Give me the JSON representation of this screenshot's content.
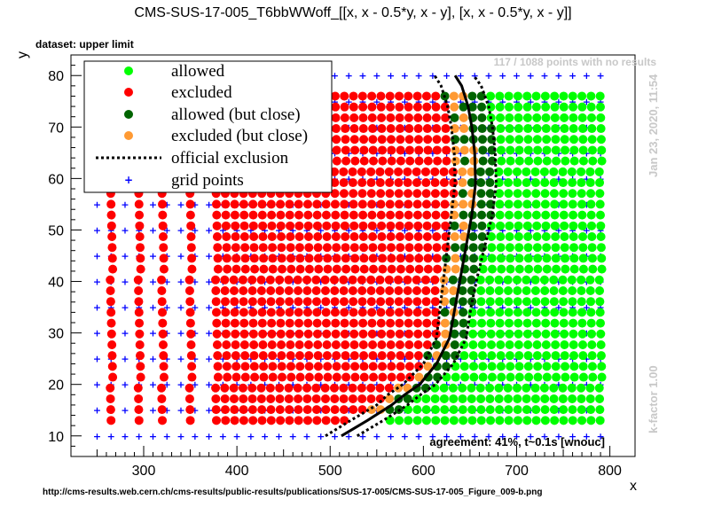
{
  "chart_data": {
    "type": "scatter",
    "title": "CMS-SUS-17-005_T6bbWWoff_[[x, x - 0.5*y, x - y], [x, x - 0.5*y, x - y]]",
    "subtitle": "dataset: upper limit",
    "xlabel": "x",
    "ylabel": "y",
    "xlim": [
      222,
      827
    ],
    "ylim": [
      6,
      84
    ],
    "xticks": [
      300,
      400,
      500,
      600,
      700,
      800
    ],
    "yticks": [
      10,
      20,
      30,
      40,
      50,
      60,
      70,
      80
    ],
    "grid": false,
    "legend_position": "top-left",
    "legend": [
      {
        "key": "allowed",
        "label": "allowed",
        "color": "#00ff00"
      },
      {
        "key": "excluded",
        "label": "excluded",
        "color": "#ff0000"
      },
      {
        "key": "allowed_close",
        "label": "allowed (but close)",
        "color": "#006400"
      },
      {
        "key": "excluded_close",
        "label": "excluded (but close)",
        "color": "#ff9a33"
      },
      {
        "key": "official",
        "label": "official exclusion",
        "color": "#000000"
      },
      {
        "key": "grid",
        "label": "grid points",
        "color": "#0000ff"
      }
    ],
    "annotations": {
      "no_results": "117 / 1088 points with no results",
      "timestamp": "Jan 23, 2020, 11:54",
      "kfactor": "k-factor 1.00",
      "agreement": "agreement: 41%, t~0.1s [wnouc]",
      "source_url": "http://cms-results.web.cern.ch/cms-results/public-results/publications/SUS-17-005/CMS-SUS-17-005_Figure_009-b.png"
    },
    "series": [
      {
        "name": "official exclusion",
        "style": "solid",
        "x": [
          512,
          540,
          566,
          580,
          596,
          614,
          628,
          634,
          640,
          646,
          652,
          656,
          655,
          652,
          648,
          641,
          634
        ],
        "y": [
          10,
          13,
          16,
          18,
          20,
          24,
          29,
          35,
          41,
          47,
          53,
          59,
          65,
          70,
          74,
          78,
          80
        ]
      },
      {
        "name": "official exclusion",
        "style": "dotted",
        "side": "minus",
        "x": [
          495,
          522,
          550,
          562,
          578,
          600,
          614,
          618,
          622,
          626,
          630,
          634,
          633,
          630,
          626,
          619,
          612
        ],
        "y": [
          10,
          13,
          16,
          18,
          20,
          24,
          29,
          35,
          41,
          47,
          53,
          59,
          65,
          70,
          74,
          78,
          80
        ]
      },
      {
        "name": "official exclusion",
        "style": "dotted",
        "side": "plus",
        "x": [
          529,
          557,
          583,
          597,
          613,
          632,
          646,
          651,
          658,
          666,
          674,
          678,
          677,
          674,
          670,
          662,
          654
        ],
        "y": [
          10,
          13,
          16,
          18,
          20,
          24,
          29,
          35,
          41,
          47,
          53,
          59,
          65,
          70,
          74,
          78,
          80
        ]
      }
    ]
  }
}
